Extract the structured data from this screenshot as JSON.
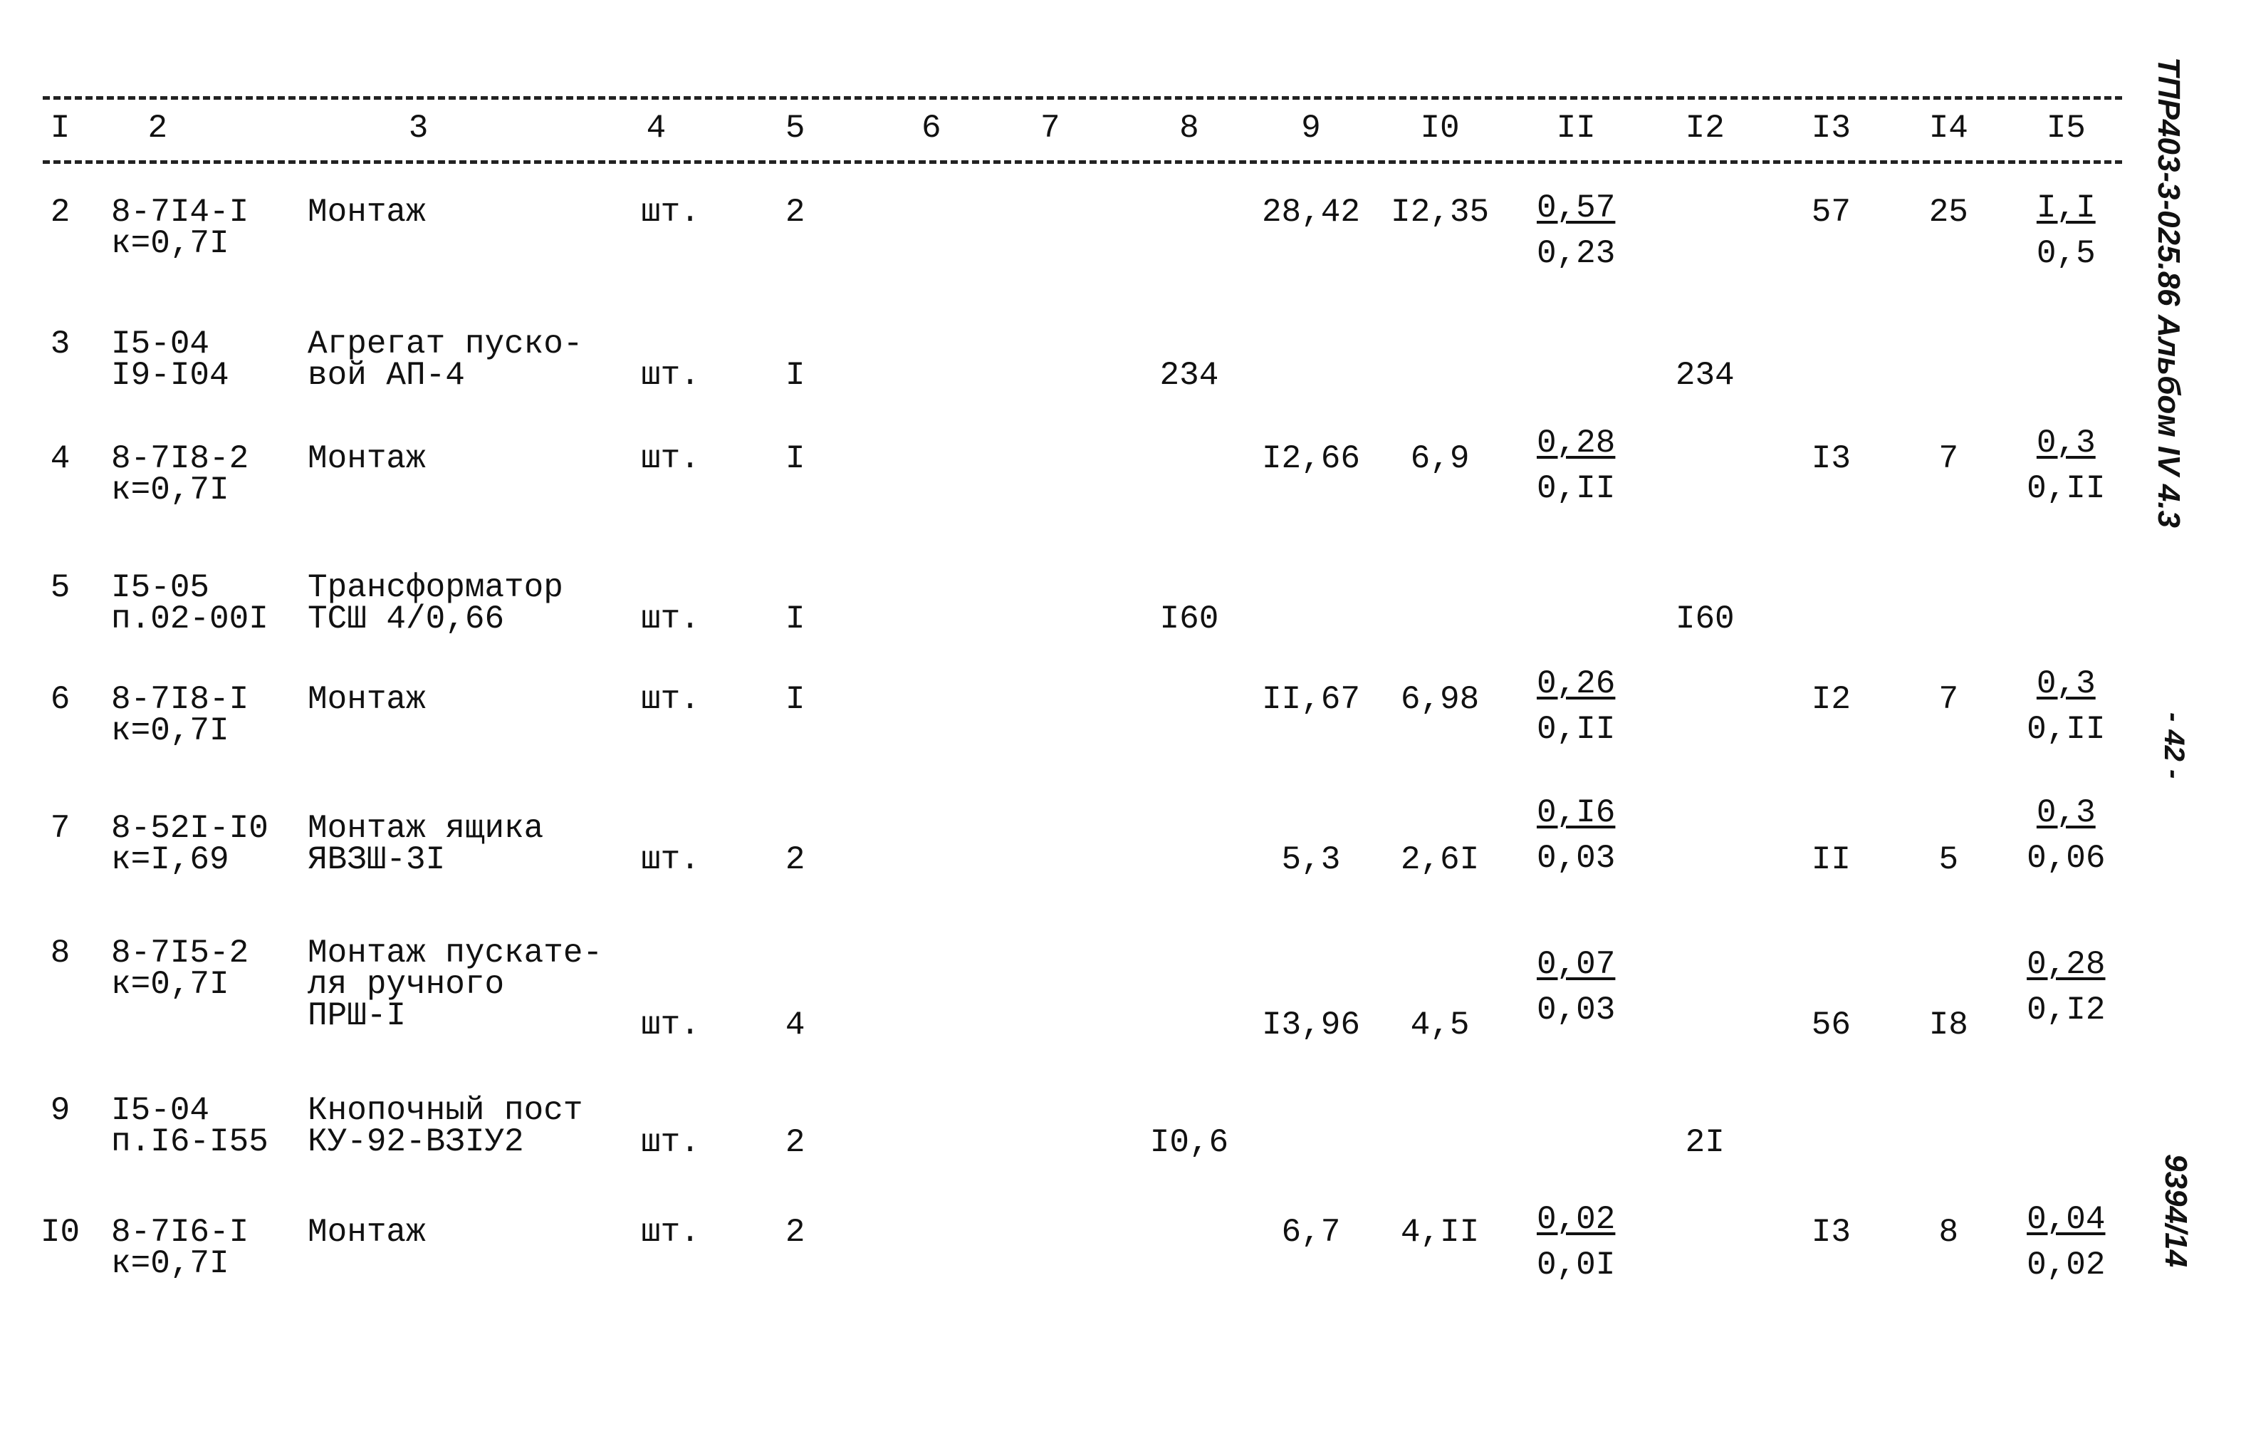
{
  "columns": [
    "I",
    "2",
    "3",
    "4",
    "5",
    "6",
    "7",
    "8",
    "9",
    "I0",
    "II",
    "I2",
    "I3",
    "I4",
    "I5"
  ],
  "rows": [
    {
      "n": "2",
      "code": [
        "8-7I4-I",
        "к=0,7I"
      ],
      "name": [
        "Монтаж"
      ],
      "unit": "шт.",
      "qty": "2",
      "c8": "",
      "c9": "28,42",
      "c10": "I2,35",
      "c11": [
        "0,57",
        "0,23"
      ],
      "c12": "",
      "c13": "57",
      "c14": "25",
      "c15": [
        "I,I",
        "0,5"
      ]
    },
    {
      "n": "3",
      "code": [
        "I5-04",
        "I9-I04"
      ],
      "name": [
        "Агрегат пуско-",
        "вой АП-4"
      ],
      "unit": "шт.",
      "qty": "I",
      "c8": "234",
      "c9": "",
      "c10": "",
      "c11": null,
      "c12": "234",
      "c13": "",
      "c14": "",
      "c15": null
    },
    {
      "n": "4",
      "code": [
        "8-7I8-2",
        "к=0,7I"
      ],
      "name": [
        "Монтаж"
      ],
      "unit": "шт.",
      "qty": "I",
      "c8": "",
      "c9": "I2,66",
      "c10": "6,9",
      "c11": [
        "0,28",
        "0,II"
      ],
      "c12": "",
      "c13": "I3",
      "c14": "7",
      "c15": [
        "0,3",
        "0,II"
      ]
    },
    {
      "n": "5",
      "code": [
        "I5-05",
        "п.02-00I"
      ],
      "name": [
        "Трансформатор",
        "ТСШ 4/0,66"
      ],
      "unit": "шт.",
      "qty": "I",
      "c8": "I60",
      "c9": "",
      "c10": "",
      "c11": null,
      "c12": "I60",
      "c13": "",
      "c14": "",
      "c15": null
    },
    {
      "n": "6",
      "code": [
        "8-7I8-I",
        "к=0,7I"
      ],
      "name": [
        "Монтаж"
      ],
      "unit": "шт.",
      "qty": "I",
      "c8": "",
      "c9": "II,67",
      "c10": "6,98",
      "c11": [
        "0,26",
        "0,II"
      ],
      "c12": "",
      "c13": "I2",
      "c14": "7",
      "c15": [
        "0,3",
        "0,II"
      ]
    },
    {
      "n": "7",
      "code": [
        "8-52I-I0",
        "к=I,69"
      ],
      "name": [
        "Монтаж ящика",
        "ЯВЗШ-3I"
      ],
      "unit": "шт.",
      "qty": "2",
      "c8": "",
      "c9": "5,3",
      "c10": "2,6I",
      "c11": [
        "0,I6",
        "0,03"
      ],
      "c12": "",
      "c13": "II",
      "c14": "5",
      "c15": [
        "0,3",
        "0,06"
      ]
    },
    {
      "n": "8",
      "code": [
        "8-7I5-2",
        "к=0,7I"
      ],
      "name": [
        "Монтаж пускате-",
        "ля ручного",
        "ПРШ-I"
      ],
      "unit": "шт.",
      "qty": "4",
      "c8": "",
      "c9": "I3,96",
      "c10": "4,5",
      "c11": [
        "0,07",
        "0,03"
      ],
      "c12": "",
      "c13": "56",
      "c14": "I8",
      "c15": [
        "0,28",
        "0,I2"
      ]
    },
    {
      "n": "9",
      "code": [
        "I5-04",
        "п.I6-I55"
      ],
      "name": [
        "Кнопочный пост",
        "КУ-92-ВЗIУ2"
      ],
      "unit": "шт.",
      "qty": "2",
      "c8": "I0,6",
      "c9": "",
      "c10": "",
      "c11": null,
      "c12": "2I",
      "c13": "",
      "c14": "",
      "c15": null
    },
    {
      "n": "I0",
      "code": [
        "8-7I6-I",
        "к=0,7I"
      ],
      "name": [
        "Монтаж"
      ],
      "unit": "шт.",
      "qty": "2",
      "c8": "",
      "c9": "6,7",
      "c10": "4,II",
      "c11": [
        "0,02",
        "0,0I"
      ],
      "c12": "",
      "c13": "I3",
      "c14": "8",
      "c15": [
        "0,04",
        "0,02"
      ]
    }
  ],
  "side": {
    "album": "ТПР403-3-025.86 Альбом IV 4.3",
    "page": "- 42 -",
    "inv": "9394/14"
  }
}
